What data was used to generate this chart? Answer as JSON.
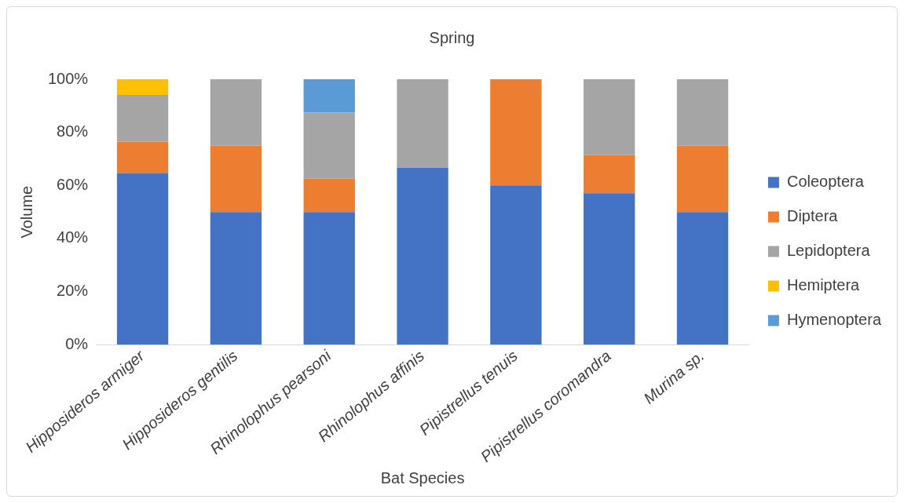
{
  "chart_data": {
    "type": "bar",
    "title": "Spring",
    "xlabel": "Bat Species",
    "ylabel": "Volume",
    "stacked": true,
    "legend": "right",
    "grid": false,
    "categories": [
      "Hipposideros armiger",
      "Hipposideros gentilis",
      "Rhinolophus pearsoni",
      "Rhinolophus affinis",
      "Pipistrellus tenuis",
      "Pipistrellus coromandra",
      "Murina sp."
    ],
    "ylim": [
      0,
      100
    ],
    "yticks": [
      {
        "value": 0,
        "label": "0%"
      },
      {
        "value": 20,
        "label": "20%"
      },
      {
        "value": 40,
        "label": "40%"
      },
      {
        "value": 60,
        "label": "60%"
      },
      {
        "value": 80,
        "label": "80%"
      },
      {
        "value": 100,
        "label": "100%"
      }
    ],
    "series": [
      {
        "name": "Coleoptera",
        "color": "#4472c4",
        "values": [
          64.7,
          50,
          50,
          66.7,
          60,
          57.1,
          50
        ]
      },
      {
        "name": "Diptera",
        "color": "#ed7d31",
        "values": [
          11.8,
          25,
          12.5,
          0,
          40,
          14.3,
          25
        ]
      },
      {
        "name": "Lepidoptera",
        "color": "#a5a5a5",
        "values": [
          17.6,
          25,
          25,
          33.3,
          0,
          28.6,
          25
        ]
      },
      {
        "name": "Hemiptera",
        "color": "#ffc000",
        "values": [
          5.9,
          0,
          0,
          0,
          0,
          0,
          0
        ]
      },
      {
        "name": "Hymenoptera",
        "color": "#5b9bd5",
        "values": [
          0,
          0,
          12.5,
          0,
          0,
          0,
          0
        ]
      }
    ]
  }
}
